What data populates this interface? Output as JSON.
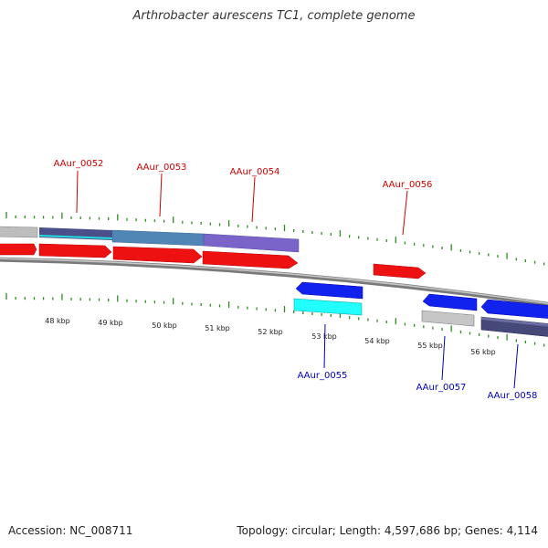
{
  "title": "Arthrobacter aurescens TC1, complete genome",
  "footer": {
    "accession": "Accession: NC_008711",
    "summary": "Topology: circular; Length: 4,597,686 bp; Genes: 4,114"
  },
  "colors": {
    "backbone": "#8c8c8c",
    "tick": "#2e8b22",
    "cds": "#ff0000",
    "cds_reverse": "#0000ff",
    "top_label": "#cc0000",
    "bottom_label": "#0000bb"
  },
  "scale": {
    "unit": "kbp",
    "labels": [
      "48 kbp",
      "49 kbp",
      "50 kbp",
      "51 kbp",
      "52 kbp",
      "53 kbp",
      "54 kbp",
      "55 kbp",
      "56 kbp"
    ]
  },
  "gene_labels": [
    {
      "label": "AAur_0052",
      "strand": "forward"
    },
    {
      "label": "AAur_0053",
      "strand": "forward"
    },
    {
      "label": "AAur_0054",
      "strand": "forward"
    },
    {
      "label": "AAur_0056",
      "strand": "forward"
    },
    {
      "label": "AAur_0055",
      "strand": "reverse"
    },
    {
      "label": "AAur_0057",
      "strand": "reverse"
    },
    {
      "label": "AAur_0058",
      "strand": "reverse"
    }
  ]
}
